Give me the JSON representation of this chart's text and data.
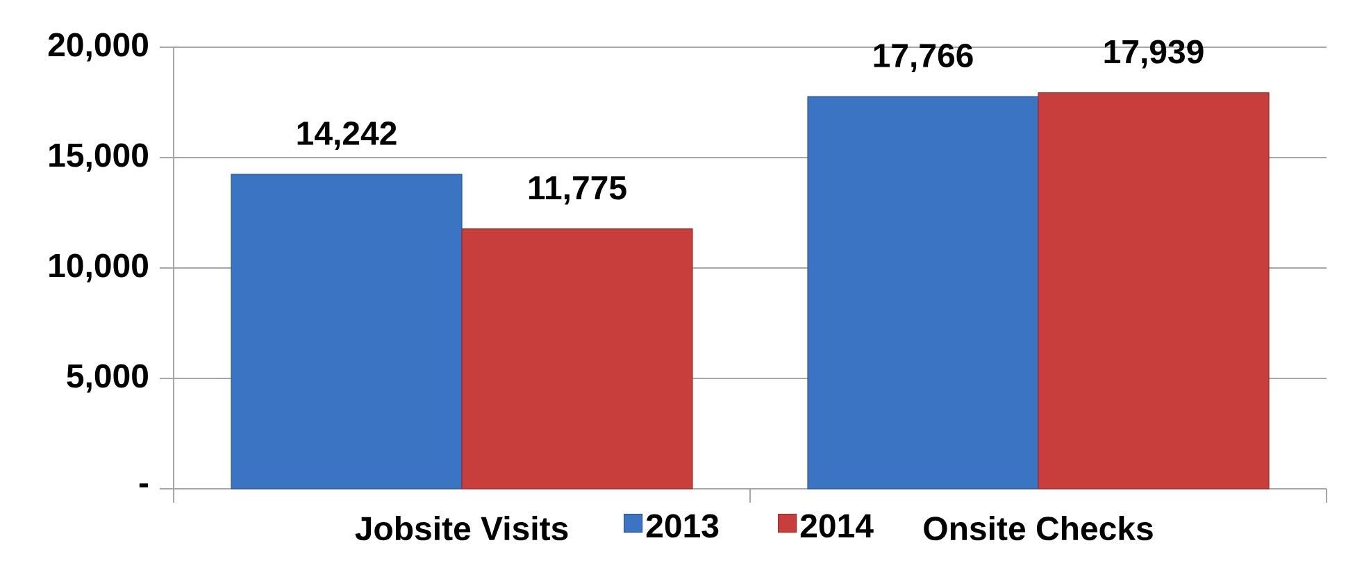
{
  "chart_data": {
    "type": "bar",
    "categories": [
      "Jobsite Visits",
      "Onsite Checks"
    ],
    "series": [
      {
        "name": "2013",
        "color": "#3b74c2",
        "values": [
          14242,
          17766
        ],
        "value_labels": [
          "14,242",
          "17,766"
        ]
      },
      {
        "name": "2014",
        "color": "#c83e3c",
        "values": [
          11775,
          17939
        ],
        "value_labels": [
          "11,775",
          "17,939"
        ]
      }
    ],
    "ylim": [
      0,
      20000
    ],
    "yticks": [
      {
        "value": 0,
        "label": "-"
      },
      {
        "value": 5000,
        "label": "5,000"
      },
      {
        "value": 10000,
        "label": "10,000"
      },
      {
        "value": 15000,
        "label": "15,000"
      },
      {
        "value": 20000,
        "label": "20,000"
      }
    ],
    "grid": "y",
    "legend": "bottom"
  }
}
